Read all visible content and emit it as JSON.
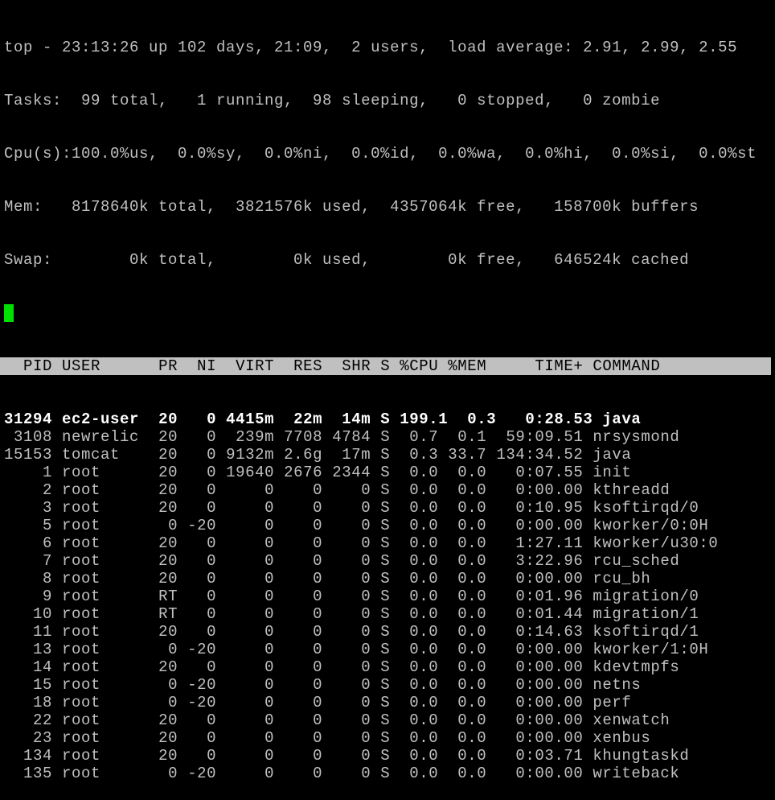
{
  "summary": {
    "uptime_line": "top - 23:13:26 up 102 days, 21:09,  2 users,  load average: 2.91, 2.99, 2.55",
    "tasks_line": "Tasks:  99 total,   1 running,  98 sleeping,   0 stopped,   0 zombie",
    "cpu_line": "Cpu(s):100.0%us,  0.0%sy,  0.0%ni,  0.0%id,  0.0%wa,  0.0%hi,  0.0%si,  0.0%st",
    "mem_line": "Mem:   8178640k total,  3821576k used,  4357064k free,   158700k buffers",
    "swap_line": "Swap:        0k total,        0k used,        0k free,   646524k cached"
  },
  "colors": {
    "background": "#000000",
    "text": "#c0c0c0",
    "header_bar": "#c0c0c0",
    "cursor": "#00e000"
  },
  "columns": [
    "PID",
    "USER",
    "PR",
    "NI",
    "VIRT",
    "RES",
    "SHR",
    "S",
    "%CPU",
    "%MEM",
    "TIME+",
    "COMMAND"
  ],
  "processes": [
    [
      "31294",
      "ec2-user",
      "20",
      "0",
      "4415m",
      "22m",
      "14m",
      "S",
      "199.1",
      "0.3",
      "0:28.53",
      "java"
    ],
    [
      "3108",
      "newrelic",
      "20",
      "0",
      "239m",
      "7708",
      "4784",
      "S",
      "0.7",
      "0.1",
      "59:09.51",
      "nrsysmond"
    ],
    [
      "15153",
      "tomcat",
      "20",
      "0",
      "9132m",
      "2.6g",
      "17m",
      "S",
      "0.3",
      "33.7",
      "134:34.52",
      "java"
    ],
    [
      "1",
      "root",
      "20",
      "0",
      "19640",
      "2676",
      "2344",
      "S",
      "0.0",
      "0.0",
      "0:07.55",
      "init"
    ],
    [
      "2",
      "root",
      "20",
      "0",
      "0",
      "0",
      "0",
      "S",
      "0.0",
      "0.0",
      "0:00.00",
      "kthreadd"
    ],
    [
      "3",
      "root",
      "20",
      "0",
      "0",
      "0",
      "0",
      "S",
      "0.0",
      "0.0",
      "0:10.95",
      "ksoftirqd/0"
    ],
    [
      "5",
      "root",
      "0",
      "-20",
      "0",
      "0",
      "0",
      "S",
      "0.0",
      "0.0",
      "0:00.00",
      "kworker/0:0H"
    ],
    [
      "6",
      "root",
      "20",
      "0",
      "0",
      "0",
      "0",
      "S",
      "0.0",
      "0.0",
      "1:27.11",
      "kworker/u30:0"
    ],
    [
      "7",
      "root",
      "20",
      "0",
      "0",
      "0",
      "0",
      "S",
      "0.0",
      "0.0",
      "3:22.96",
      "rcu_sched"
    ],
    [
      "8",
      "root",
      "20",
      "0",
      "0",
      "0",
      "0",
      "S",
      "0.0",
      "0.0",
      "0:00.00",
      "rcu_bh"
    ],
    [
      "9",
      "root",
      "RT",
      "0",
      "0",
      "0",
      "0",
      "S",
      "0.0",
      "0.0",
      "0:01.96",
      "migration/0"
    ],
    [
      "10",
      "root",
      "RT",
      "0",
      "0",
      "0",
      "0",
      "S",
      "0.0",
      "0.0",
      "0:01.44",
      "migration/1"
    ],
    [
      "11",
      "root",
      "20",
      "0",
      "0",
      "0",
      "0",
      "S",
      "0.0",
      "0.0",
      "0:14.63",
      "ksoftirqd/1"
    ],
    [
      "13",
      "root",
      "0",
      "-20",
      "0",
      "0",
      "0",
      "S",
      "0.0",
      "0.0",
      "0:00.00",
      "kworker/1:0H"
    ],
    [
      "14",
      "root",
      "20",
      "0",
      "0",
      "0",
      "0",
      "S",
      "0.0",
      "0.0",
      "0:00.00",
      "kdevtmpfs"
    ],
    [
      "15",
      "root",
      "0",
      "-20",
      "0",
      "0",
      "0",
      "S",
      "0.0",
      "0.0",
      "0:00.00",
      "netns"
    ],
    [
      "18",
      "root",
      "0",
      "-20",
      "0",
      "0",
      "0",
      "S",
      "0.0",
      "0.0",
      "0:00.00",
      "perf"
    ],
    [
      "22",
      "root",
      "20",
      "0",
      "0",
      "0",
      "0",
      "S",
      "0.0",
      "0.0",
      "0:00.00",
      "xenwatch"
    ],
    [
      "23",
      "root",
      "20",
      "0",
      "0",
      "0",
      "0",
      "S",
      "0.0",
      "0.0",
      "0:00.00",
      "xenbus"
    ],
    [
      "134",
      "root",
      "20",
      "0",
      "0",
      "0",
      "0",
      "S",
      "0.0",
      "0.0",
      "0:03.71",
      "khungtaskd"
    ],
    [
      "135",
      "root",
      "0",
      "-20",
      "0",
      "0",
      "0",
      "S",
      "0.0",
      "0.0",
      "0:00.00",
      "writeback"
    ]
  ]
}
